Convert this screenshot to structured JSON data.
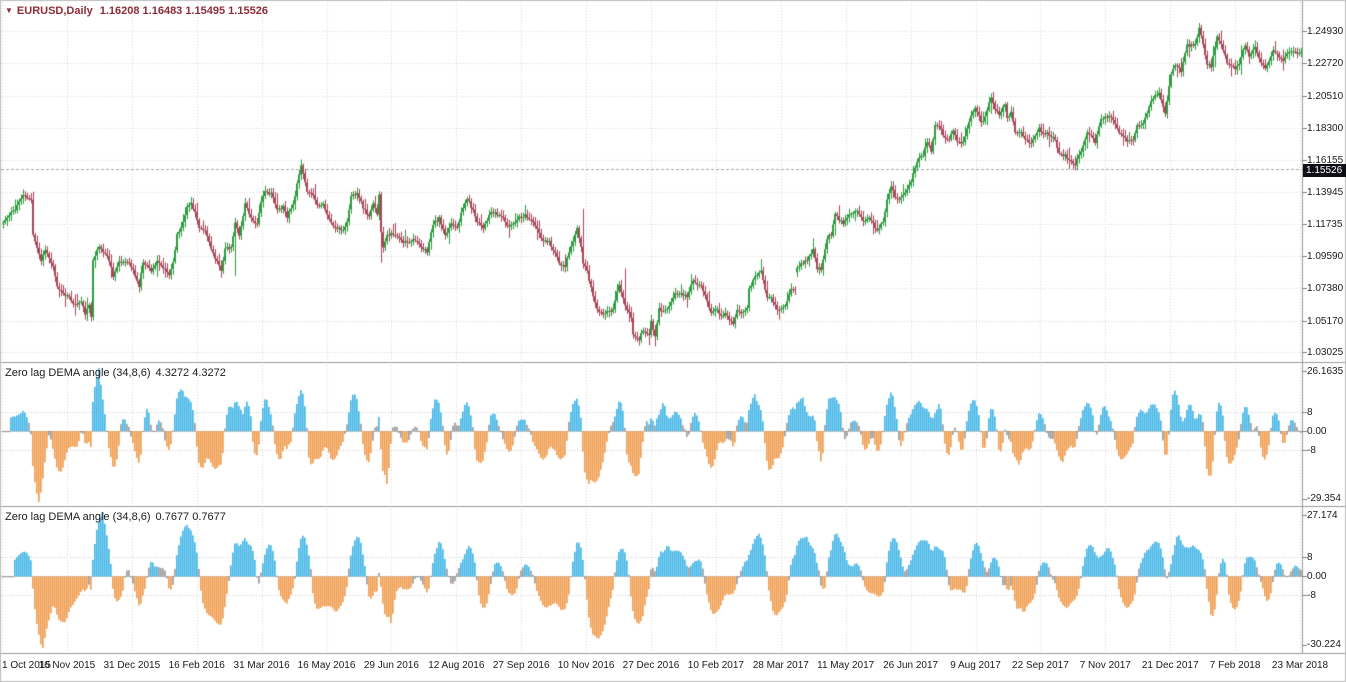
{
  "window": {
    "bg": "#ffffff",
    "border_color": "#c0c0c0"
  },
  "header": {
    "marker_icon": "▼",
    "symbol_period": "EURUSD,Daily",
    "ohlc_text": "1.16208 1.16483 1.15495 1.15526",
    "color": "#8e2c39"
  },
  "indicator1": {
    "title": "Zero lag DEMA angle (34,8,6)",
    "values_text": "4.3272 4.3272"
  },
  "indicator2": {
    "title": "Zero lag DEMA angle (34,8,6)",
    "values_text": "0.7677 0.7677"
  },
  "grid": {
    "grid_color": "#d8d8d8",
    "level_color": "#cccccc",
    "zero_color": "#c6c6c6",
    "separator_color": "#9a9a9a",
    "tick_color": "#808080",
    "bid_line_color": "#ababab",
    "bid_box_bg": "#0d0d16",
    "bid_box_text": "#ffffff",
    "axis_text_color": "#1b1b1b"
  },
  "chart_data": [
    {
      "type": "candlestick",
      "title": "EURUSD,Daily",
      "current_bar": {
        "open": 1.16208,
        "high": 1.16483,
        "low": 1.15495,
        "close": 1.15526
      },
      "bars_total": 650,
      "up_color": "#2e9b3f",
      "down_color": "#a8485a",
      "render_seed": 11,
      "price_axis": {
        "top": 1.2691,
        "bottom": 1.0234,
        "bid": 1.15526,
        "bid_label": "1.15526",
        "labels": [
          {
            "value": 1.2493,
            "label": "1.24930"
          },
          {
            "value": 1.2272,
            "label": "1.22720"
          },
          {
            "value": 1.2051,
            "label": "1.20510"
          },
          {
            "value": 1.183,
            "label": "1.18300"
          },
          {
            "value": 1.16155,
            "label": "1.16155"
          },
          {
            "value": 1.13945,
            "label": "1.13945"
          },
          {
            "value": 1.11735,
            "label": "1.11735"
          },
          {
            "value": 1.0959,
            "label": "1.09590"
          },
          {
            "value": 1.0738,
            "label": "1.07380"
          },
          {
            "value": 1.0517,
            "label": "1.05170"
          },
          {
            "value": 1.03025,
            "label": "1.03025"
          }
        ]
      },
      "x_axis_dates": [
        "1 Oct 2015",
        "16 Nov 2015",
        "31 Dec 2015",
        "16 Feb 2016",
        "31 Mar 2016",
        "16 May 2016",
        "29 Jun 2016",
        "12 Aug 2016",
        "27 Sep 2016",
        "10 Nov 2016",
        "27 Dec 2016",
        "10 Feb 2017",
        "28 Mar 2017",
        "11 May 2017",
        "26 Jun 2017",
        "9 Aug 2017",
        "22 Sep 2017",
        "7 Nov 2017",
        "21 Dec 2017",
        "7 Feb 2018",
        "23 Mar 2018"
      ],
      "price_keypoints": [
        [
          0,
          1.1185
        ],
        [
          6,
          1.128
        ],
        [
          10,
          1.1375
        ],
        [
          14,
          1.1335
        ],
        [
          15,
          1.111
        ],
        [
          19,
          1.0925
        ],
        [
          21,
          1.1005
        ],
        [
          25,
          1.088
        ],
        [
          27,
          1.0745
        ],
        [
          32,
          1.0685
        ],
        [
          36,
          1.0625
        ],
        [
          39,
          1.0645
        ],
        [
          41,
          1.0565
        ],
        [
          43,
          1.0615
        ],
        [
          44,
          1.0545
        ],
        [
          45,
          1.094
        ],
        [
          48,
          1.102
        ],
        [
          51,
          1.0975
        ],
        [
          53,
          1.093
        ],
        [
          55,
          1.0825
        ],
        [
          58,
          1.091
        ],
        [
          62,
          1.0925
        ],
        [
          65,
          1.086
        ],
        [
          68,
          1.075
        ],
        [
          70,
          1.092
        ],
        [
          74,
          1.086
        ],
        [
          77,
          1.0915
        ],
        [
          79,
          1.089
        ],
        [
          83,
          1.083
        ],
        [
          85,
          1.0915
        ],
        [
          87,
          1.11
        ],
        [
          89,
          1.1155
        ],
        [
          92,
          1.129
        ],
        [
          94,
          1.132
        ],
        [
          96,
          1.1255
        ],
        [
          98,
          1.114
        ],
        [
          101,
          1.113
        ],
        [
          104,
          1.1015
        ],
        [
          106,
          1.0935
        ],
        [
          109,
          1.0865
        ],
        [
          111,
          1.1005
        ],
        [
          114,
          1.101
        ],
        [
          116,
          1.118
        ],
        [
          118,
          1.1105
        ],
        [
          120,
          1.1225
        ],
        [
          121,
          1.1317
        ],
        [
          124,
          1.1215
        ],
        [
          127,
          1.1175
        ],
        [
          129,
          1.1335
        ],
        [
          131,
          1.139
        ],
        [
          134,
          1.139
        ],
        [
          137,
          1.127
        ],
        [
          140,
          1.13
        ],
        [
          142,
          1.1225
        ],
        [
          146,
          1.1355
        ],
        [
          147,
          1.145
        ],
        [
          149,
          1.157
        ],
        [
          151,
          1.145
        ],
        [
          152,
          1.1405
        ],
        [
          155,
          1.1375
        ],
        [
          157,
          1.1305
        ],
        [
          160,
          1.1315
        ],
        [
          163,
          1.1205
        ],
        [
          166,
          1.115
        ],
        [
          170,
          1.1135
        ],
        [
          172,
          1.119
        ],
        [
          174,
          1.1365
        ],
        [
          177,
          1.1395
        ],
        [
          180,
          1.129
        ],
        [
          183,
          1.1225
        ],
        [
          185,
          1.131
        ],
        [
          187,
          1.125
        ],
        [
          188,
          1.1385
        ],
        [
          189,
          1.1115
        ],
        [
          190,
          1.1024
        ],
        [
          192,
          1.1105
        ],
        [
          194,
          1.1105
        ],
        [
          197,
          1.109
        ],
        [
          200,
          1.105
        ],
        [
          203,
          1.106
        ],
        [
          206,
          1.1075
        ],
        [
          209,
          1.101
        ],
        [
          212,
          1.099
        ],
        [
          215,
          1.1175
        ],
        [
          218,
          1.1215
        ],
        [
          221,
          1.109
        ],
        [
          224,
          1.118
        ],
        [
          227,
          1.116
        ],
        [
          230,
          1.1285
        ],
        [
          232,
          1.1352
        ],
        [
          235,
          1.1265
        ],
        [
          237,
          1.1198
        ],
        [
          240,
          1.1155
        ],
        [
          244,
          1.1255
        ],
        [
          247,
          1.124
        ],
        [
          250,
          1.1225
        ],
        [
          252,
          1.1155
        ],
        [
          255,
          1.118
        ],
        [
          258,
          1.1225
        ],
        [
          261,
          1.1235
        ],
        [
          264,
          1.1205
        ],
        [
          267,
          1.114
        ],
        [
          270,
          1.1055
        ],
        [
          273,
          1.1055
        ],
        [
          276,
          1.098
        ],
        [
          279,
          1.0885
        ],
        [
          281,
          1.089
        ],
        [
          283,
          1.0985
        ],
        [
          285,
          1.1055
        ],
        [
          287,
          1.114
        ],
        [
          289,
          1.1025
        ],
        [
          290,
          1.091
        ],
        [
          292,
          1.0855
        ],
        [
          294,
          1.074
        ],
        [
          297,
          1.059
        ],
        [
          300,
          1.0555
        ],
        [
          302,
          1.059
        ],
        [
          305,
          1.0585
        ],
        [
          306,
          1.066
        ],
        [
          308,
          1.0765
        ],
        [
          311,
          1.0615
        ],
        [
          314,
          1.0535
        ],
        [
          315,
          1.0415
        ],
        [
          318,
          1.039
        ],
        [
          320,
          1.0455
        ],
        [
          323,
          1.0415
        ],
        [
          324,
          1.0515
        ],
        [
          326,
          1.0405
        ],
        [
          328,
          1.0605
        ],
        [
          330,
          1.0575
        ],
        [
          333,
          1.0615
        ],
        [
          336,
          1.0712
        ],
        [
          338,
          1.07
        ],
        [
          342,
          1.068
        ],
        [
          345,
          1.08
        ],
        [
          347,
          1.076
        ],
        [
          349,
          1.075
        ],
        [
          352,
          1.0645
        ],
        [
          354,
          1.0578
        ],
        [
          356,
          1.06
        ],
        [
          359,
          1.0558
        ],
        [
          361,
          1.056
        ],
        [
          365,
          1.0505
        ],
        [
          367,
          1.0583
        ],
        [
          369,
          1.0577
        ],
        [
          372,
          1.0605
        ],
        [
          373,
          1.0737
        ],
        [
          376,
          1.0812
        ],
        [
          379,
          1.0865
        ],
        [
          382,
          1.0675
        ],
        [
          384,
          1.0671
        ],
        [
          387,
          1.0592
        ],
        [
          389,
          1.0593
        ],
        [
          391,
          1.0614
        ],
        [
          394,
          1.0731
        ],
        [
          396,
          1.0727
        ],
        [
          397,
          1.0867
        ],
        [
          399,
          1.0905
        ],
        [
          402,
          1.0932
        ],
        [
          405,
          1.0998
        ],
        [
          407,
          1.0875
        ],
        [
          409,
          1.0863
        ],
        [
          412,
          1.1083
        ],
        [
          414,
          1.1104
        ],
        [
          416,
          1.1238
        ],
        [
          420,
          1.1178
        ],
        [
          423,
          1.1244
        ],
        [
          427,
          1.1276
        ],
        [
          430,
          1.1196
        ],
        [
          433,
          1.1216
        ],
        [
          437,
          1.1134
        ],
        [
          440,
          1.1194
        ],
        [
          442,
          1.134
        ],
        [
          444,
          1.1441
        ],
        [
          446,
          1.1364
        ],
        [
          448,
          1.1351
        ],
        [
          452,
          1.1414
        ],
        [
          454,
          1.1469
        ],
        [
          456,
          1.1556
        ],
        [
          458,
          1.1632
        ],
        [
          460,
          1.1644
        ],
        [
          462,
          1.1736
        ],
        [
          464,
          1.1678
        ],
        [
          466,
          1.1842
        ],
        [
          468,
          1.1856
        ],
        [
          470,
          1.1773
        ],
        [
          473,
          1.1759
        ],
        [
          475,
          1.1823
        ],
        [
          477,
          1.1735
        ],
        [
          479,
          1.1724
        ],
        [
          481,
          1.1764
        ],
        [
          484,
          1.1924
        ],
        [
          486,
          1.1973
        ],
        [
          488,
          1.191
        ],
        [
          489,
          1.186
        ],
        [
          491,
          1.1915
        ],
        [
          494,
          1.2036
        ],
        [
          496,
          1.1966
        ],
        [
          498,
          1.1919
        ],
        [
          501,
          1.1995
        ],
        [
          502,
          1.1891
        ],
        [
          504,
          1.1949
        ],
        [
          506,
          1.1794
        ],
        [
          509,
          1.1814
        ],
        [
          511,
          1.1746
        ],
        [
          514,
          1.173
        ],
        [
          518,
          1.1829
        ],
        [
          520,
          1.1796
        ],
        [
          524,
          1.1784
        ],
        [
          526,
          1.1758
        ],
        [
          528,
          1.1652
        ],
        [
          531,
          1.1646
        ],
        [
          534,
          1.161
        ],
        [
          536,
          1.1588
        ],
        [
          539,
          1.1665
        ],
        [
          542,
          1.1794
        ],
        [
          544,
          1.1792
        ],
        [
          546,
          1.1737
        ],
        [
          549,
          1.1898
        ],
        [
          553,
          1.1904
        ],
        [
          555,
          1.1896
        ],
        [
          557,
          1.1826
        ],
        [
          560,
          1.1773
        ],
        [
          562,
          1.1742
        ],
        [
          565,
          1.1751
        ],
        [
          567,
          1.184
        ],
        [
          570,
          1.1867
        ],
        [
          574,
          1.2005
        ],
        [
          576,
          1.2059
        ],
        [
          578,
          1.2067
        ],
        [
          581,
          1.1937
        ],
        [
          584,
          1.2205
        ],
        [
          586,
          1.2262
        ],
        [
          589,
          1.2222
        ],
        [
          592,
          1.2406
        ],
        [
          593,
          1.2394
        ],
        [
          596,
          1.2403
        ],
        [
          598,
          1.2514
        ],
        [
          599,
          1.2461
        ],
        [
          602,
          1.2264
        ],
        [
          604,
          1.2252
        ],
        [
          607,
          1.2451
        ],
        [
          609,
          1.2401
        ],
        [
          612,
          1.2283
        ],
        [
          616,
          1.2234
        ],
        [
          618,
          1.2266
        ],
        [
          621,
          1.2404
        ],
        [
          623,
          1.2312
        ],
        [
          626,
          1.2392
        ],
        [
          628,
          1.2306
        ],
        [
          631,
          1.2241
        ],
        [
          633,
          1.2298
        ],
        [
          635,
          1.2355
        ],
        [
          640,
          1.23
        ],
        [
          644,
          1.236
        ],
        [
          649,
          1.234
        ]
      ],
      "spikes": [
        {
          "i": 45,
          "low": 1.0525
        },
        {
          "i": 116,
          "low": 1.0822
        },
        {
          "i": 149,
          "high": 1.1616
        },
        {
          "i": 189,
          "low": 1.0912
        },
        {
          "i": 290,
          "high": 1.128
        },
        {
          "i": 311,
          "high": 1.0873
        },
        {
          "i": 326,
          "low": 1.034
        }
      ],
      "gaps": [
        {
          "i": 397,
          "open": 1.0845
        }
      ]
    },
    {
      "type": "histogram",
      "title": "Zero lag DEMA angle (34,8,6)",
      "values_display": [
        4.3272,
        4.3272
      ],
      "derived_from": "price_dema_slope",
      "smooth_span": 6,
      "slope_lag": 4,
      "compression": 0.75,
      "positive_color": "#4ab8e8",
      "negative_color": "#f0a055",
      "neutral_color": "#4a4a4a",
      "color_threshold": 4,
      "y_axis": {
        "max": 26.1635,
        "min": -29.354,
        "max_label": "26.1635",
        "min_label": "-29.354",
        "levels": [
          {
            "value": 8,
            "label": "8"
          },
          {
            "value": 0,
            "label": "0.00"
          },
          {
            "value": -8,
            "label": "-8"
          }
        ]
      }
    },
    {
      "type": "histogram",
      "title": "Zero lag DEMA angle (34,8,6)",
      "values_display": [
        0.7677,
        0.7677
      ],
      "derived_from": "price_dema_slope",
      "smooth_span": 10,
      "slope_lag": 6,
      "compression": 0.75,
      "positive_color": "#4ab8e8",
      "negative_color": "#f0a055",
      "neutral_color": "#4a4a4a",
      "color_threshold": 4,
      "y_axis": {
        "max": 27.174,
        "min": -30.224,
        "max_label": "27.174",
        "min_label": "-30.224",
        "levels": [
          {
            "value": 8,
            "label": "8"
          },
          {
            "value": 0,
            "label": "0.00"
          },
          {
            "value": -8,
            "label": "-8"
          }
        ]
      }
    }
  ]
}
